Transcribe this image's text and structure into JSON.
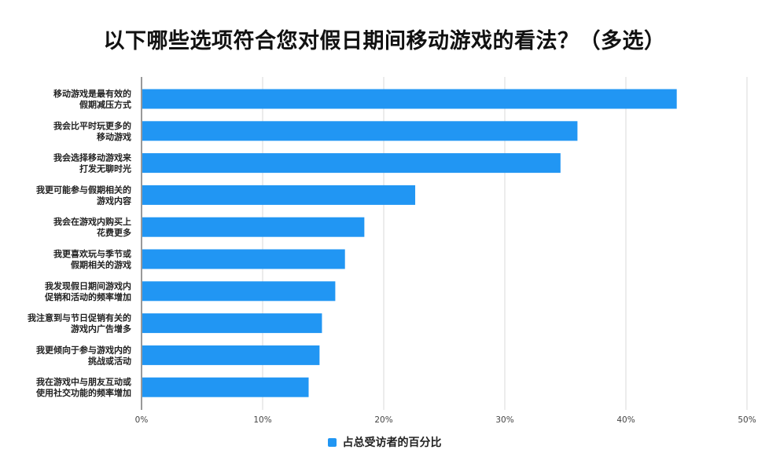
{
  "chart_data": {
    "type": "bar",
    "orientation": "horizontal",
    "title": "以下哪些选项符合您对假日期间移动游戏的看法？（多选）",
    "categories": [
      [
        "移动游戏是最有效的",
        "假期减压方式"
      ],
      [
        "我会比平时玩更多的",
        "移动游戏"
      ],
      [
        "我会选择移动游戏来",
        "打发无聊时光"
      ],
      [
        "我更可能参与假期相关的",
        "游戏内容"
      ],
      [
        "我会在游戏内购买上",
        "花费更多"
      ],
      [
        "我更喜欢玩与季节或",
        "假期相关的游戏"
      ],
      [
        "我发现假日期间游戏内",
        "促销和活动的频率增加"
      ],
      [
        "我注意到与节日促销有关的",
        "游戏内广告增多"
      ],
      [
        "我更倾向于参与游戏内的",
        "挑战或活动"
      ],
      [
        "我在游戏中与朋友互动或",
        "使用社交功能的频率增加"
      ]
    ],
    "series": [
      {
        "name": "占总受访者的百分比",
        "values": [
          44.2,
          36.0,
          34.6,
          22.6,
          18.4,
          16.8,
          16.0,
          14.9,
          14.7,
          13.8
        ],
        "color": "#2196f3"
      }
    ],
    "xlim": [
      0,
      50
    ],
    "xticks": [
      "0%",
      "10%",
      "20%",
      "30%",
      "40%",
      "50%"
    ],
    "tick_values": [
      0,
      10,
      20,
      30,
      40,
      50
    ],
    "grid": true,
    "legend_position": "bottom"
  }
}
